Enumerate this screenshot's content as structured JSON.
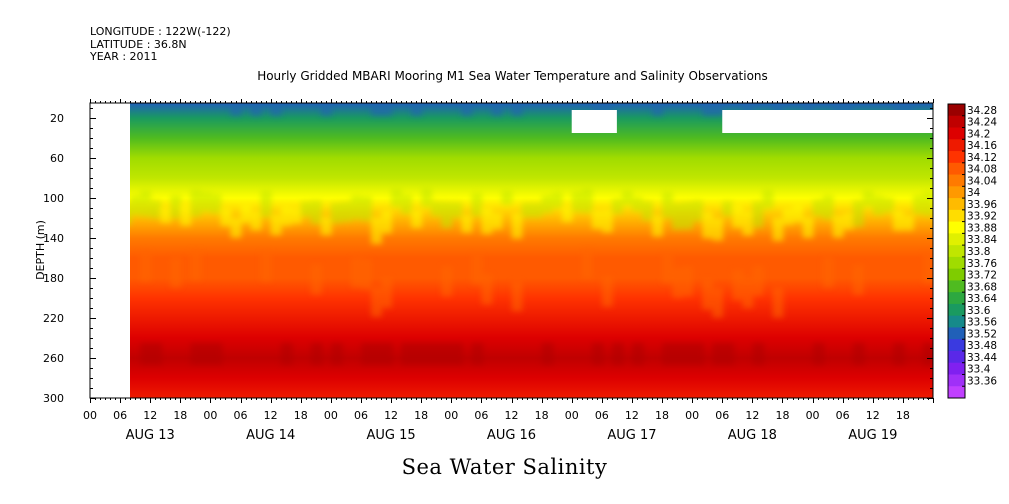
{
  "meta": {
    "longitude": "LONGITUDE : 122W(-122)",
    "latitude": "LATITUDE : 36.8N",
    "year": "YEAR : 2011"
  },
  "title": "Hourly Gridded MBARI Mooring M1 Sea Water Temperature and Salinity Observations",
  "subtitle": "Sea Water Salinity",
  "chart_data": {
    "type": "heatmap",
    "title": "Hourly Gridded MBARI Mooring M1 Sea Water Temperature and Salinity Observations",
    "xlabel": "",
    "ylabel": "DEPTH (m)",
    "x_range_hours": [
      0,
      168
    ],
    "x_start": "AUG 13 00",
    "x_hour_ticks": [
      "00",
      "06",
      "12",
      "18",
      "00",
      "06",
      "12",
      "18",
      "00",
      "06",
      "12",
      "18",
      "00",
      "06",
      "12",
      "18",
      "00",
      "06",
      "12",
      "18",
      "00",
      "06",
      "12",
      "18",
      "00",
      "06",
      "12",
      "18"
    ],
    "x_day_labels": [
      "AUG 13",
      "AUG 14",
      "AUG 15",
      "AUG 16",
      "AUG 17",
      "AUG 18",
      "AUG 19"
    ],
    "y_ticks": [
      20,
      60,
      100,
      140,
      180,
      220,
      260,
      300
    ],
    "ylim": [
      300,
      5
    ],
    "data_start_hour": 6,
    "data_end_hour": 168,
    "missing_regions": [
      {
        "hours": [
          96,
          105
        ],
        "depth": [
          12,
          35
        ]
      },
      {
        "hours": [
          126,
          168
        ],
        "depth": [
          12,
          35
        ]
      }
    ],
    "depth_profile": [
      {
        "depth": 5,
        "value": 33.54
      },
      {
        "depth": 20,
        "value": 33.62
      },
      {
        "depth": 40,
        "value": 33.7
      },
      {
        "depth": 60,
        "value": 33.76
      },
      {
        "depth": 80,
        "value": 33.82
      },
      {
        "depth": 100,
        "value": 33.9
      },
      {
        "depth": 120,
        "value": 33.98
      },
      {
        "depth": 140,
        "value": 34.04
      },
      {
        "depth": 160,
        "value": 34.08
      },
      {
        "depth": 180,
        "value": 34.1
      },
      {
        "depth": 200,
        "value": 34.14
      },
      {
        "depth": 220,
        "value": 34.19
      },
      {
        "depth": 240,
        "value": 34.23
      },
      {
        "depth": 260,
        "value": 34.25
      },
      {
        "depth": 280,
        "value": 34.2
      },
      {
        "depth": 300,
        "value": 34.18
      }
    ],
    "colorbar": {
      "levels": [
        "34.28",
        "34.24",
        "34.2",
        "34.16",
        "34.12",
        "34.08",
        "34.04",
        "34",
        "33.96",
        "33.92",
        "33.88",
        "33.84",
        "33.8",
        "33.76",
        "33.72",
        "33.68",
        "33.64",
        "33.6",
        "33.56",
        "33.52",
        "33.48",
        "33.44",
        "33.4",
        "33.36"
      ],
      "colors": [
        "#9a0000",
        "#c00000",
        "#dd0000",
        "#ee1a00",
        "#ff3300",
        "#ff5a00",
        "#ff7a00",
        "#ff9900",
        "#ffbb00",
        "#ffdd00",
        "#ffff00",
        "#e0f000",
        "#c0e600",
        "#a0dc00",
        "#7fcc00",
        "#4fbb20",
        "#2da840",
        "#1a9a60",
        "#168a8a",
        "#2060b8",
        "#3a3ae0",
        "#5a28e8",
        "#8020f0",
        "#a030f8",
        "#c040ff"
      ]
    }
  }
}
